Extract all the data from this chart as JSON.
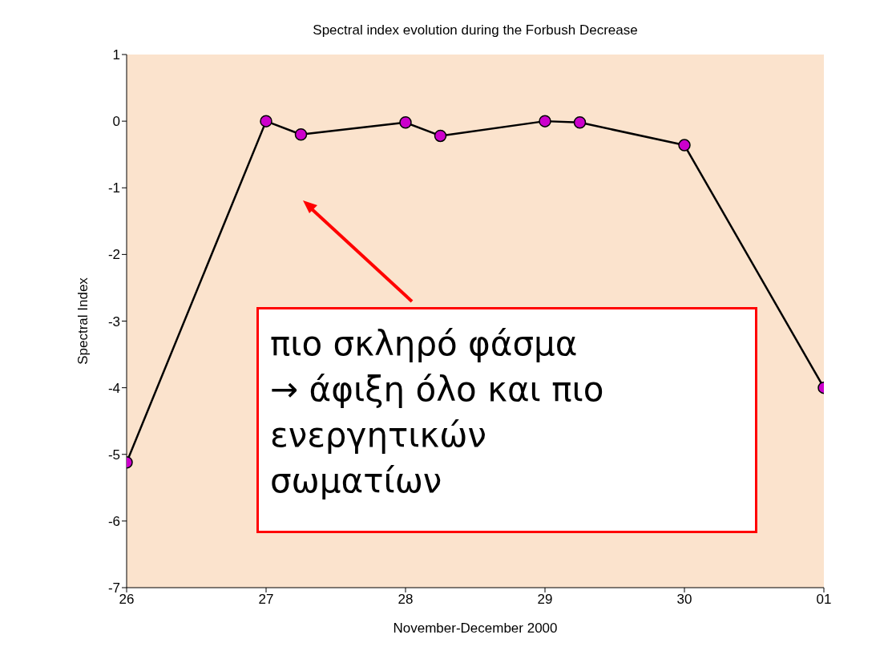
{
  "chart_data": {
    "type": "line",
    "title": "Spectral index evolution during the Forbush Decrease",
    "xlabel": "November-December 2000",
    "ylabel": "Spectral Index",
    "x": [
      "2000-11-26",
      "2000-11-27",
      "2000-11-27T06:00",
      "2000-11-28",
      "2000-11-28T06:00",
      "2000-11-29",
      "2000-11-29T06:00",
      "2000-11-30",
      "2000-12-01"
    ],
    "series": [
      {
        "color": "#000000",
        "values": [
          -5.12,
          0,
          -0.2,
          -0.02,
          -0.22,
          0,
          -0.02,
          -0.36,
          -4.0
        ]
      }
    ],
    "xlim": [
      "2000-11-26",
      "2000-12-01"
    ],
    "xticks": [
      {
        "value": "2000-11-26",
        "label": "26"
      },
      {
        "value": "2000-11-27",
        "label": "27"
      },
      {
        "value": "2000-11-28",
        "label": "28"
      },
      {
        "value": "2000-11-29",
        "label": "29"
      },
      {
        "value": "2000-11-30",
        "label": "30"
      },
      {
        "value": "2000-12-01",
        "label": "01"
      }
    ],
    "ylim": [
      -7,
      1
    ],
    "yticks": [
      -7,
      -6,
      -5,
      -4,
      -3,
      -2,
      -1,
      0,
      1
    ],
    "marker": "circle",
    "line_style": "solid",
    "grid": false,
    "legend": false,
    "annotations": [
      "πιο σκληρό φάσμα\n → άφιξη όλο και πιο\nενεργητικών\nσωματίων"
    ]
  }
}
